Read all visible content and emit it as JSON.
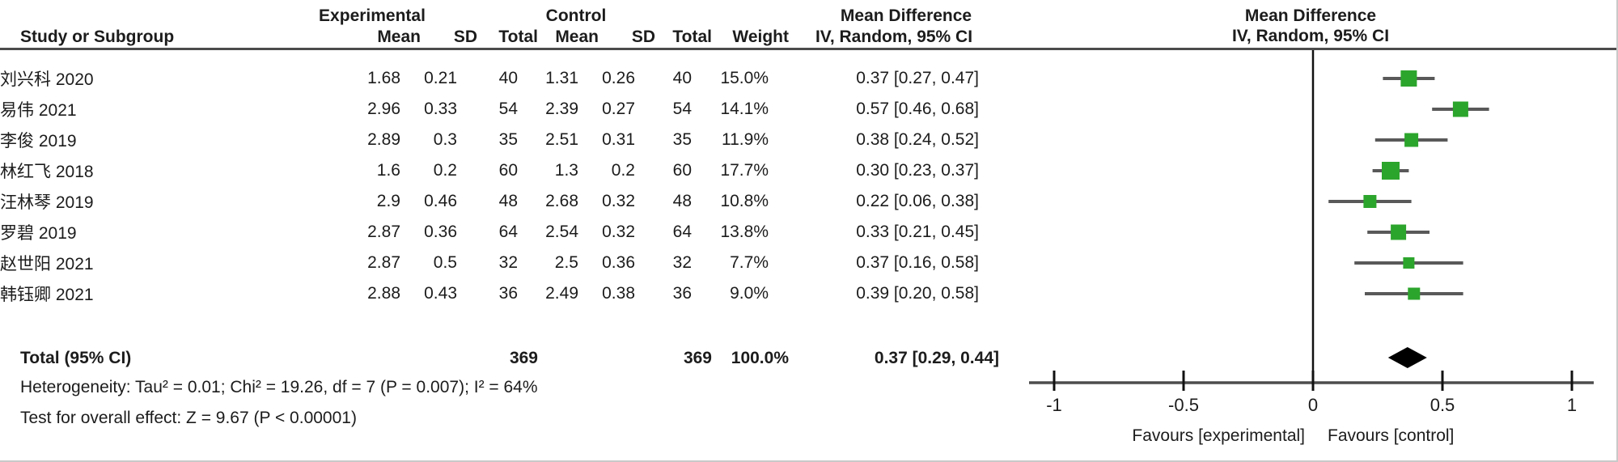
{
  "header": {
    "group_experimental": "Experimental",
    "group_control": "Control",
    "group_mean_difference": "Mean Difference",
    "group_mean_difference_plot": "Mean Difference",
    "col_study": "Study or Subgroup",
    "col_mean": "Mean",
    "col_sd": "SD",
    "col_total": "Total",
    "col_weight": "Weight",
    "col_method": "IV, Random, 95% CI",
    "col_method_plot": "IV, Random, 95% CI"
  },
  "studies": [
    {
      "name": "刘兴科 2020",
      "exp_mean": "1.68",
      "exp_sd": "0.21",
      "exp_total": "40",
      "ctl_mean": "1.31",
      "ctl_sd": "0.26",
      "ctl_total": "40",
      "weight": "15.0%",
      "ci_text": "0.37 [0.27, 0.47]",
      "md": 0.37,
      "lo": 0.27,
      "hi": 0.47,
      "weight_pct": 15.0
    },
    {
      "name": "易伟 2021",
      "exp_mean": "2.96",
      "exp_sd": "0.33",
      "exp_total": "54",
      "ctl_mean": "2.39",
      "ctl_sd": "0.27",
      "ctl_total": "54",
      "weight": "14.1%",
      "ci_text": "0.57 [0.46, 0.68]",
      "md": 0.57,
      "lo": 0.46,
      "hi": 0.68,
      "weight_pct": 14.1
    },
    {
      "name": "李俊 2019",
      "exp_mean": "2.89",
      "exp_sd": "0.3",
      "exp_total": "35",
      "ctl_mean": "2.51",
      "ctl_sd": "0.31",
      "ctl_total": "35",
      "weight": "11.9%",
      "ci_text": "0.38 [0.24, 0.52]",
      "md": 0.38,
      "lo": 0.24,
      "hi": 0.52,
      "weight_pct": 11.9
    },
    {
      "name": "林红飞 2018",
      "exp_mean": "1.6",
      "exp_sd": "0.2",
      "exp_total": "60",
      "ctl_mean": "1.3",
      "ctl_sd": "0.2",
      "ctl_total": "60",
      "weight": "17.7%",
      "ci_text": "0.30 [0.23, 0.37]",
      "md": 0.3,
      "lo": 0.23,
      "hi": 0.37,
      "weight_pct": 17.7
    },
    {
      "name": "汪林琴 2019",
      "exp_mean": "2.9",
      "exp_sd": "0.46",
      "exp_total": "48",
      "ctl_mean": "2.68",
      "ctl_sd": "0.32",
      "ctl_total": "48",
      "weight": "10.8%",
      "ci_text": "0.22 [0.06, 0.38]",
      "md": 0.22,
      "lo": 0.06,
      "hi": 0.38,
      "weight_pct": 10.8
    },
    {
      "name": "罗碧 2019",
      "exp_mean": "2.87",
      "exp_sd": "0.36",
      "exp_total": "64",
      "ctl_mean": "2.54",
      "ctl_sd": "0.32",
      "ctl_total": "64",
      "weight": "13.8%",
      "ci_text": "0.33 [0.21, 0.45]",
      "md": 0.33,
      "lo": 0.21,
      "hi": 0.45,
      "weight_pct": 13.8
    },
    {
      "name": "赵世阳 2021",
      "exp_mean": "2.87",
      "exp_sd": "0.5",
      "exp_total": "32",
      "ctl_mean": "2.5",
      "ctl_sd": "0.36",
      "ctl_total": "32",
      "weight": "7.7%",
      "ci_text": "0.37 [0.16, 0.58]",
      "md": 0.37,
      "lo": 0.16,
      "hi": 0.58,
      "weight_pct": 7.7
    },
    {
      "name": "韩钰卿 2021",
      "exp_mean": "2.88",
      "exp_sd": "0.43",
      "exp_total": "36",
      "ctl_mean": "2.49",
      "ctl_sd": "0.38",
      "ctl_total": "36",
      "weight": "9.0%",
      "ci_text": "0.39 [0.20, 0.58]",
      "md": 0.39,
      "lo": 0.2,
      "hi": 0.58,
      "weight_pct": 9.0
    }
  ],
  "total": {
    "label": "Total (95% CI)",
    "exp_total": "369",
    "ctl_total": "369",
    "weight": "100.0%",
    "ci_text": "0.37 [0.29, 0.44]",
    "md": 0.37,
    "lo": 0.29,
    "hi": 0.44
  },
  "footer": {
    "heterogeneity": "Heterogeneity: Tau² = 0.01; Chi² = 19.26, df = 7 (P = 0.007); I² = 64%",
    "overall_effect": "Test for overall effect: Z = 9.67 (P < 0.00001)"
  },
  "chart_data": {
    "type": "forest",
    "title": "Mean Difference — IV, Random, 95% CI",
    "x_ticks": [
      -1,
      -0.5,
      0,
      0.5,
      1
    ],
    "x_tick_labels": [
      "-1",
      "-0.5",
      "0",
      "0.5",
      "1"
    ],
    "xlim": [
      -1.09,
      1.08
    ],
    "favours_left": "Favours [experimental]",
    "favours_right": "Favours [control]",
    "points": [
      {
        "study": "刘兴科 2020",
        "md": 0.37,
        "lo": 0.27,
        "hi": 0.47,
        "weight_pct": 15.0
      },
      {
        "study": "易伟 2021",
        "md": 0.57,
        "lo": 0.46,
        "hi": 0.68,
        "weight_pct": 14.1
      },
      {
        "study": "李俊 2019",
        "md": 0.38,
        "lo": 0.24,
        "hi": 0.52,
        "weight_pct": 11.9
      },
      {
        "study": "林红飞 2018",
        "md": 0.3,
        "lo": 0.23,
        "hi": 0.37,
        "weight_pct": 17.7
      },
      {
        "study": "汪林琴 2019",
        "md": 0.22,
        "lo": 0.06,
        "hi": 0.38,
        "weight_pct": 10.8
      },
      {
        "study": "罗碧 2019",
        "md": 0.33,
        "lo": 0.21,
        "hi": 0.45,
        "weight_pct": 13.8
      },
      {
        "study": "赵世阳 2021",
        "md": 0.37,
        "lo": 0.16,
        "hi": 0.58,
        "weight_pct": 7.7
      },
      {
        "study": "韩钰卿 2021",
        "md": 0.39,
        "lo": 0.2,
        "hi": 0.58,
        "weight_pct": 9.0
      }
    ],
    "summary": {
      "md": 0.37,
      "lo": 0.29,
      "hi": 0.44
    },
    "colors": {
      "marker": "#2ca52c",
      "ci_line": "#595959",
      "diamond": "#000000",
      "axis": "#4d4d4d",
      "zero_line": "#111111"
    }
  }
}
